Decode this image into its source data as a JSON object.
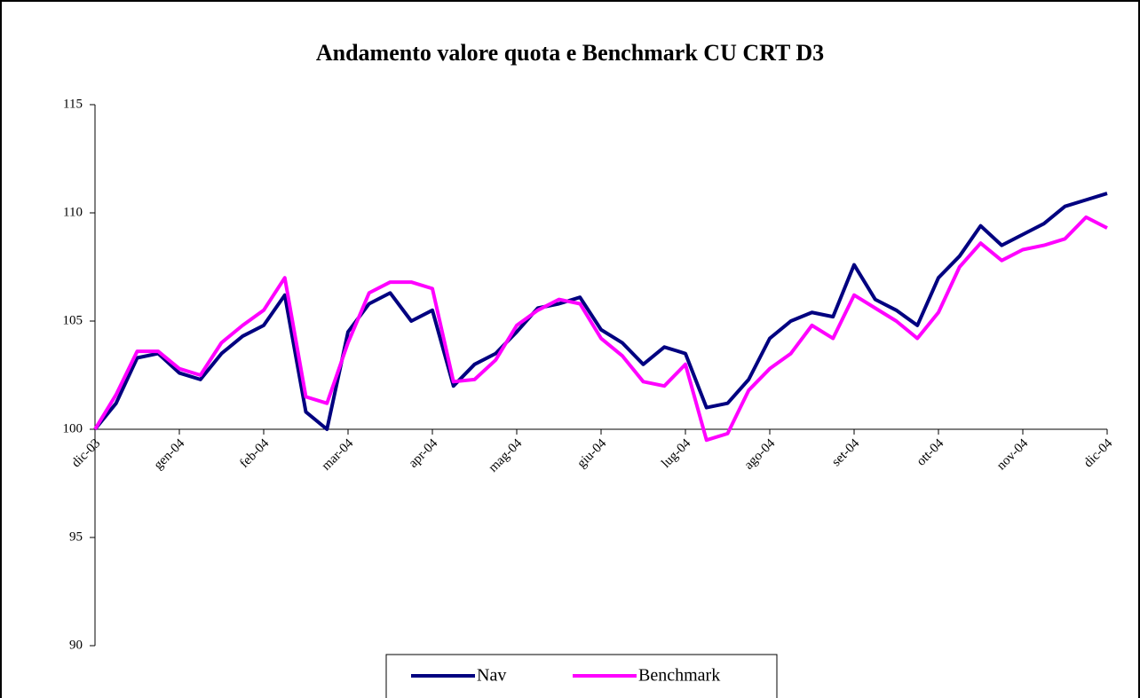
{
  "chart_data": {
    "type": "line",
    "title": "Andamento valore quota e Benchmark CU CRT D3",
    "categories": [
      "dic-03",
      null,
      null,
      null,
      "gen-04",
      null,
      null,
      null,
      "feb-04",
      null,
      null,
      null,
      "mar-04",
      null,
      null,
      null,
      "apr-04",
      null,
      null,
      null,
      "mag-04",
      null,
      null,
      null,
      "giu-04",
      null,
      null,
      null,
      "lug-04",
      null,
      null,
      null,
      "ago-04",
      null,
      null,
      null,
      "set-04",
      null,
      null,
      null,
      "ott-04",
      null,
      null,
      null,
      "nov-04",
      null,
      null,
      null,
      "dic-04"
    ],
    "series": [
      {
        "name": "Nav",
        "color": "#000080",
        "values": [
          100,
          101.2,
          103.3,
          103.5,
          102.6,
          102.3,
          103.5,
          104.3,
          104.8,
          106.2,
          100.8,
          100,
          104.5,
          105.8,
          106.3,
          105,
          105.5,
          102,
          103,
          103.5,
          104.5,
          105.6,
          105.8,
          106.1,
          104.6,
          104,
          103,
          103.8,
          103.5,
          101,
          101.2,
          102.3,
          104.2,
          105,
          105.4,
          105.2,
          107.6,
          106,
          105.5,
          104.8,
          107,
          108,
          109.4,
          108.5,
          109,
          109.5,
          110.3,
          110.6,
          110.9
        ]
      },
      {
        "name": "Benchmark",
        "color": "#ff00ff",
        "values": [
          100,
          101.6,
          103.6,
          103.6,
          102.8,
          102.5,
          104,
          104.8,
          105.5,
          107,
          101.5,
          101.2,
          104,
          106.3,
          106.8,
          106.8,
          106.5,
          102.2,
          102.3,
          103.2,
          104.8,
          105.5,
          106,
          105.8,
          104.2,
          103.4,
          102.2,
          102,
          103,
          99.5,
          99.8,
          101.8,
          102.8,
          103.5,
          104.8,
          104.2,
          106.2,
          105.6,
          105,
          104.2,
          105.4,
          107.5,
          108.6,
          107.8,
          108.3,
          108.5,
          108.8,
          109.8,
          109.3
        ]
      }
    ],
    "ylim": [
      90,
      115
    ],
    "yticks": [
      90,
      95,
      100,
      105,
      110,
      115
    ],
    "grid": false,
    "legend": "bottom"
  }
}
